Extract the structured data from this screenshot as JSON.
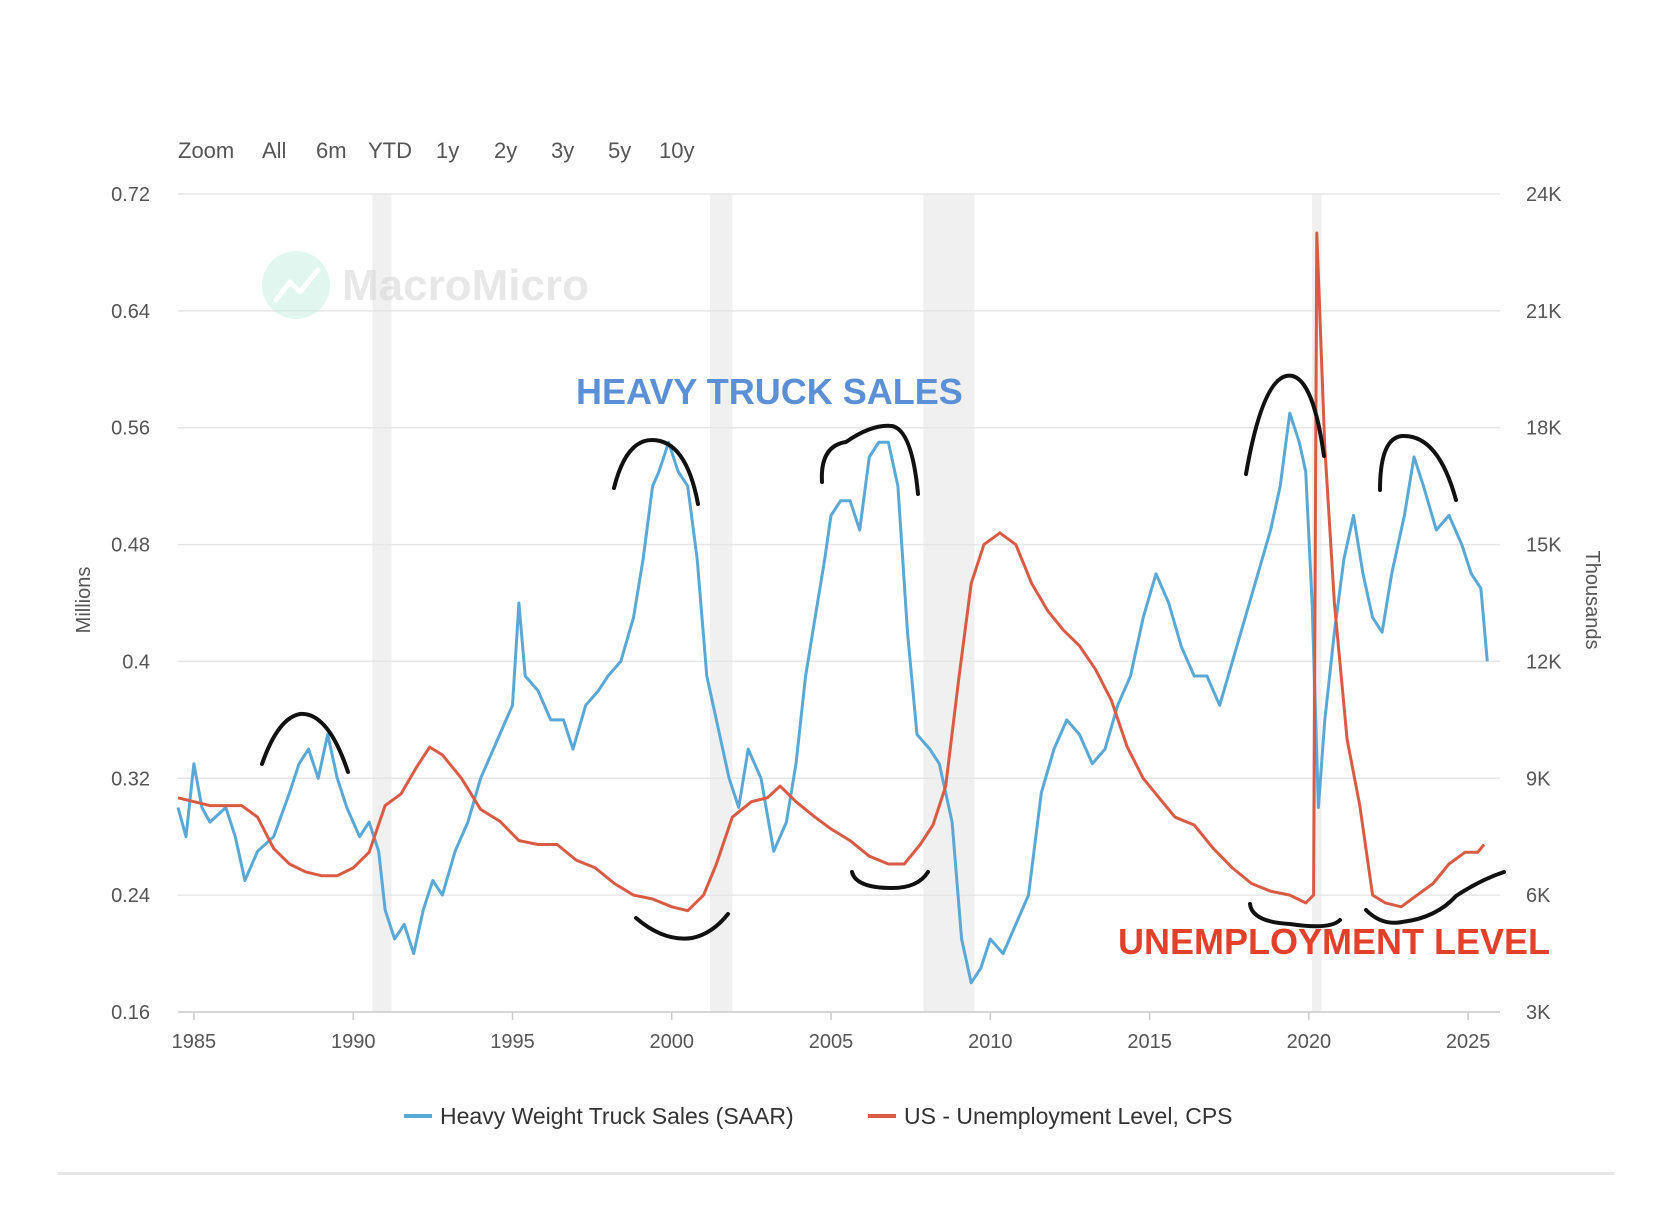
{
  "zoom": {
    "label": "Zoom",
    "buttons": [
      "All",
      "6m",
      "YTD",
      "1y",
      "2y",
      "3y",
      "5y",
      "10y"
    ]
  },
  "watermark": "MacroMicro",
  "annotations": {
    "truck": "HEAVY TRUCK SALES",
    "unemployment": "UNEMPLOYMENT LEVEL"
  },
  "colors": {
    "truck": "#5aa8d6",
    "unemployment": "#d95b43",
    "truck_annotation": "#5b8fd6",
    "unemployment_annotation": "#e3402b",
    "recession": "#f0f0f0",
    "grid": "#e6e6e6",
    "watermark_logo": "#8fe0c6"
  },
  "chart_data": {
    "type": "line",
    "xlim": [
      1984.5,
      2026.0
    ],
    "x_ticks": [
      1985,
      1990,
      1995,
      2000,
      2005,
      2010,
      2015,
      2020,
      2025
    ],
    "left_axis": {
      "label": "Millions",
      "lim": [
        0.16,
        0.72
      ],
      "ticks": [
        0.16,
        0.24,
        0.32,
        0.4,
        0.48,
        0.56,
        0.64,
        0.72
      ],
      "tick_labels": [
        "0.16",
        "0.24",
        "0.32",
        "0.4",
        "0.48",
        "0.56",
        "0.64",
        "0.72"
      ]
    },
    "right_axis": {
      "label": "Thousands",
      "lim": [
        3000,
        24000
      ],
      "ticks": [
        3000,
        6000,
        9000,
        12000,
        15000,
        18000,
        21000,
        24000
      ],
      "tick_labels": [
        "3K",
        "6K",
        "9K",
        "12K",
        "15K",
        "18K",
        "21K",
        "24K"
      ]
    },
    "recessions": [
      [
        1990.6,
        1991.2
      ],
      [
        2001.2,
        2001.9
      ],
      [
        2007.9,
        2009.5
      ],
      [
        2020.1,
        2020.4
      ]
    ],
    "grid": true,
    "legend_position": "bottom",
    "series": [
      {
        "name": "Heavy Weight Truck Sales (SAAR)",
        "axis": "left",
        "points": [
          [
            1984.5,
            0.3
          ],
          [
            1984.75,
            0.28
          ],
          [
            1985.0,
            0.33
          ],
          [
            1985.25,
            0.3
          ],
          [
            1985.5,
            0.29
          ],
          [
            1986.0,
            0.3
          ],
          [
            1986.3,
            0.28
          ],
          [
            1986.6,
            0.25
          ],
          [
            1987.0,
            0.27
          ],
          [
            1987.5,
            0.28
          ],
          [
            1988.0,
            0.31
          ],
          [
            1988.3,
            0.33
          ],
          [
            1988.6,
            0.34
          ],
          [
            1988.9,
            0.32
          ],
          [
            1989.2,
            0.35
          ],
          [
            1989.5,
            0.32
          ],
          [
            1989.8,
            0.3
          ],
          [
            1990.2,
            0.28
          ],
          [
            1990.5,
            0.29
          ],
          [
            1990.8,
            0.27
          ],
          [
            1991.0,
            0.23
          ],
          [
            1991.3,
            0.21
          ],
          [
            1991.6,
            0.22
          ],
          [
            1991.9,
            0.2
          ],
          [
            1992.2,
            0.23
          ],
          [
            1992.5,
            0.25
          ],
          [
            1992.8,
            0.24
          ],
          [
            1993.2,
            0.27
          ],
          [
            1993.6,
            0.29
          ],
          [
            1994.0,
            0.32
          ],
          [
            1994.4,
            0.34
          ],
          [
            1994.8,
            0.36
          ],
          [
            1995.0,
            0.37
          ],
          [
            1995.2,
            0.44
          ],
          [
            1995.4,
            0.39
          ],
          [
            1995.8,
            0.38
          ],
          [
            1996.2,
            0.36
          ],
          [
            1996.6,
            0.36
          ],
          [
            1996.9,
            0.34
          ],
          [
            1997.3,
            0.37
          ],
          [
            1997.7,
            0.38
          ],
          [
            1998.0,
            0.39
          ],
          [
            1998.4,
            0.4
          ],
          [
            1998.8,
            0.43
          ],
          [
            1999.1,
            0.47
          ],
          [
            1999.4,
            0.52
          ],
          [
            1999.6,
            0.53
          ],
          [
            1999.9,
            0.55
          ],
          [
            2000.2,
            0.53
          ],
          [
            2000.5,
            0.52
          ],
          [
            2000.8,
            0.47
          ],
          [
            2001.1,
            0.39
          ],
          [
            2001.4,
            0.36
          ],
          [
            2001.8,
            0.32
          ],
          [
            2002.1,
            0.3
          ],
          [
            2002.4,
            0.34
          ],
          [
            2002.8,
            0.32
          ],
          [
            2003.2,
            0.27
          ],
          [
            2003.6,
            0.29
          ],
          [
            2003.9,
            0.33
          ],
          [
            2004.2,
            0.39
          ],
          [
            2004.5,
            0.43
          ],
          [
            2004.8,
            0.47
          ],
          [
            2005.0,
            0.5
          ],
          [
            2005.3,
            0.51
          ],
          [
            2005.6,
            0.51
          ],
          [
            2005.9,
            0.49
          ],
          [
            2006.2,
            0.54
          ],
          [
            2006.5,
            0.55
          ],
          [
            2006.8,
            0.55
          ],
          [
            2007.1,
            0.52
          ],
          [
            2007.4,
            0.42
          ],
          [
            2007.7,
            0.35
          ],
          [
            2008.1,
            0.34
          ],
          [
            2008.4,
            0.33
          ],
          [
            2008.8,
            0.29
          ],
          [
            2009.1,
            0.21
          ],
          [
            2009.4,
            0.18
          ],
          [
            2009.7,
            0.19
          ],
          [
            2010.0,
            0.21
          ],
          [
            2010.4,
            0.2
          ],
          [
            2010.8,
            0.22
          ],
          [
            2011.2,
            0.24
          ],
          [
            2011.6,
            0.31
          ],
          [
            2012.0,
            0.34
          ],
          [
            2012.4,
            0.36
          ],
          [
            2012.8,
            0.35
          ],
          [
            2013.2,
            0.33
          ],
          [
            2013.6,
            0.34
          ],
          [
            2014.0,
            0.37
          ],
          [
            2014.4,
            0.39
          ],
          [
            2014.8,
            0.43
          ],
          [
            2015.2,
            0.46
          ],
          [
            2015.6,
            0.44
          ],
          [
            2016.0,
            0.41
          ],
          [
            2016.4,
            0.39
          ],
          [
            2016.8,
            0.39
          ],
          [
            2017.2,
            0.37
          ],
          [
            2017.6,
            0.4
          ],
          [
            2018.0,
            0.43
          ],
          [
            2018.4,
            0.46
          ],
          [
            2018.8,
            0.49
          ],
          [
            2019.1,
            0.52
          ],
          [
            2019.4,
            0.57
          ],
          [
            2019.7,
            0.55
          ],
          [
            2019.9,
            0.53
          ],
          [
            2020.1,
            0.44
          ],
          [
            2020.3,
            0.3
          ],
          [
            2020.5,
            0.36
          ],
          [
            2020.8,
            0.42
          ],
          [
            2021.1,
            0.47
          ],
          [
            2021.4,
            0.5
          ],
          [
            2021.7,
            0.46
          ],
          [
            2022.0,
            0.43
          ],
          [
            2022.3,
            0.42
          ],
          [
            2022.6,
            0.46
          ],
          [
            2023.0,
            0.5
          ],
          [
            2023.3,
            0.54
          ],
          [
            2023.6,
            0.52
          ],
          [
            2024.0,
            0.49
          ],
          [
            2024.4,
            0.5
          ],
          [
            2024.8,
            0.48
          ],
          [
            2025.1,
            0.46
          ],
          [
            2025.4,
            0.45
          ],
          [
            2025.6,
            0.4
          ]
        ]
      },
      {
        "name": "US - Unemployment Level, CPS",
        "axis": "right",
        "points": [
          [
            1984.5,
            8500
          ],
          [
            1985.5,
            8300
          ],
          [
            1986.5,
            8300
          ],
          [
            1987.0,
            8000
          ],
          [
            1987.5,
            7200
          ],
          [
            1988.0,
            6800
          ],
          [
            1988.5,
            6600
          ],
          [
            1989.0,
            6500
          ],
          [
            1989.5,
            6500
          ],
          [
            1990.0,
            6700
          ],
          [
            1990.5,
            7100
          ],
          [
            1991.0,
            8300
          ],
          [
            1991.5,
            8600
          ],
          [
            1992.0,
            9300
          ],
          [
            1992.4,
            9800
          ],
          [
            1992.8,
            9600
          ],
          [
            1993.4,
            9000
          ],
          [
            1994.0,
            8200
          ],
          [
            1994.6,
            7900
          ],
          [
            1995.2,
            7400
          ],
          [
            1995.8,
            7300
          ],
          [
            1996.4,
            7300
          ],
          [
            1997.0,
            6900
          ],
          [
            1997.6,
            6700
          ],
          [
            1998.2,
            6300
          ],
          [
            1998.8,
            6000
          ],
          [
            1999.4,
            5900
          ],
          [
            2000.0,
            5700
          ],
          [
            2000.5,
            5600
          ],
          [
            2001.0,
            6000
          ],
          [
            2001.4,
            6800
          ],
          [
            2001.9,
            8000
          ],
          [
            2002.5,
            8400
          ],
          [
            2003.0,
            8500
          ],
          [
            2003.4,
            8800
          ],
          [
            2003.9,
            8400
          ],
          [
            2004.5,
            8000
          ],
          [
            2005.0,
            7700
          ],
          [
            2005.6,
            7400
          ],
          [
            2006.2,
            7000
          ],
          [
            2006.8,
            6800
          ],
          [
            2007.3,
            6800
          ],
          [
            2007.8,
            7300
          ],
          [
            2008.2,
            7800
          ],
          [
            2008.6,
            8800
          ],
          [
            2009.0,
            11500
          ],
          [
            2009.4,
            14000
          ],
          [
            2009.8,
            15000
          ],
          [
            2010.3,
            15300
          ],
          [
            2010.8,
            15000
          ],
          [
            2011.3,
            14000
          ],
          [
            2011.8,
            13300
          ],
          [
            2012.3,
            12800
          ],
          [
            2012.8,
            12400
          ],
          [
            2013.3,
            11800
          ],
          [
            2013.8,
            11000
          ],
          [
            2014.3,
            9800
          ],
          [
            2014.8,
            9000
          ],
          [
            2015.3,
            8500
          ],
          [
            2015.8,
            8000
          ],
          [
            2016.4,
            7800
          ],
          [
            2017.0,
            7200
          ],
          [
            2017.6,
            6700
          ],
          [
            2018.2,
            6300
          ],
          [
            2018.8,
            6100
          ],
          [
            2019.4,
            6000
          ],
          [
            2019.9,
            5800
          ],
          [
            2020.15,
            6000
          ],
          [
            2020.25,
            23000
          ],
          [
            2020.5,
            17500
          ],
          [
            2020.8,
            13500
          ],
          [
            2021.2,
            10000
          ],
          [
            2021.6,
            8300
          ],
          [
            2022.0,
            6000
          ],
          [
            2022.4,
            5800
          ],
          [
            2022.9,
            5700
          ],
          [
            2023.4,
            6000
          ],
          [
            2023.9,
            6300
          ],
          [
            2024.4,
            6800
          ],
          [
            2024.9,
            7100
          ],
          [
            2025.3,
            7100
          ],
          [
            2025.5,
            7300
          ]
        ]
      }
    ]
  }
}
